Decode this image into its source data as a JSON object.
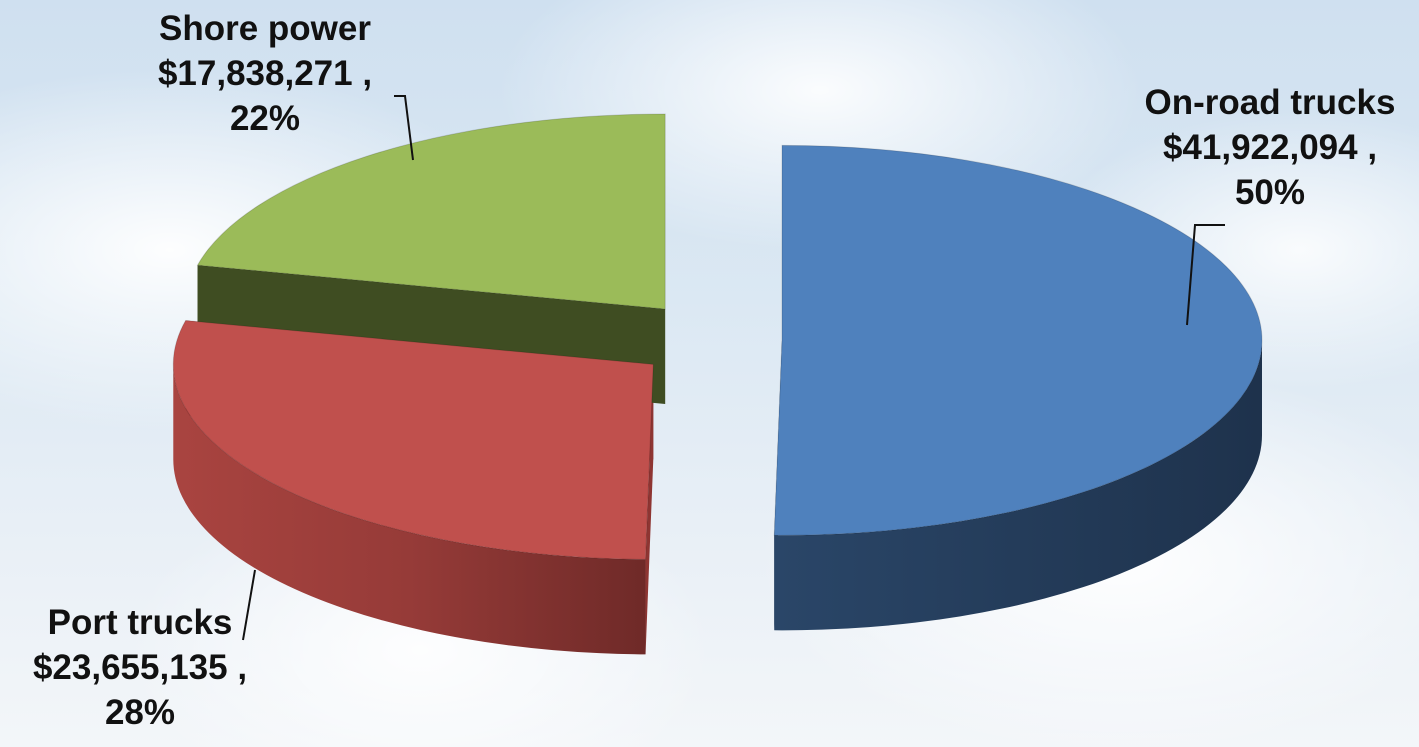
{
  "chart_data": {
    "type": "pie",
    "style": "3d-exploded",
    "legend": "none",
    "slices": [
      {
        "name": "On-road trucks",
        "value": 41922094,
        "value_label": "$41,922,094",
        "percent_label": "50%",
        "color": "#4f81bd",
        "side_color": "#233a57"
      },
      {
        "name": "Port trucks",
        "value": 23655135,
        "value_label": "$23,655,135",
        "percent_label": "28%",
        "color": "#c0504d",
        "side_color": "#8e3532"
      },
      {
        "name": "Shore power",
        "value": 17838271,
        "value_label": "$17,838,271",
        "percent_label": "22%",
        "color": "#9bbb59",
        "side_color": "#3f4d22"
      }
    ]
  }
}
